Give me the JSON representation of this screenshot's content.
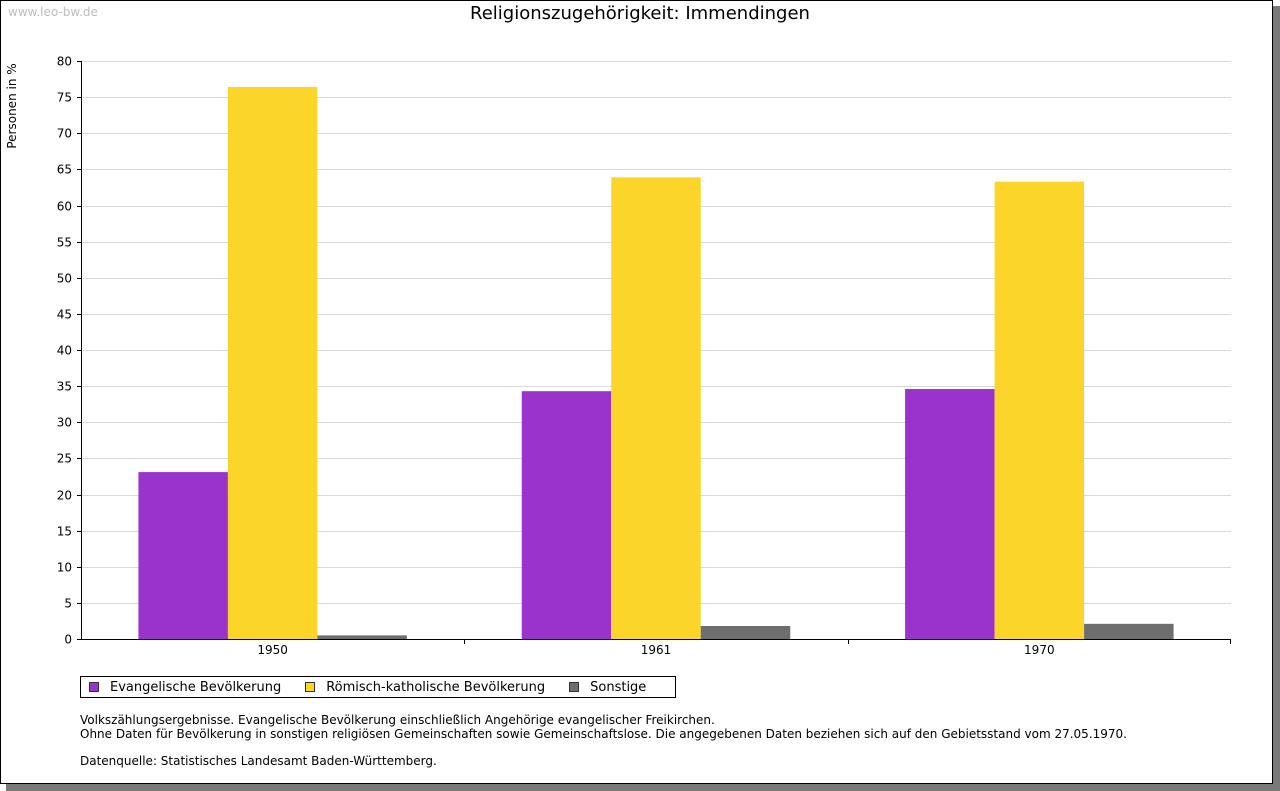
{
  "watermark": "www.leo-bw.de",
  "chart_data": {
    "type": "bar",
    "title": "Religionszugehörigkeit: Immendingen",
    "xlabel": "",
    "ylabel": "Personen in %",
    "ylim": [
      0,
      80
    ],
    "yticks": [
      "0",
      "5",
      "10",
      "15",
      "20",
      "25",
      "30",
      "35",
      "40",
      "45",
      "50",
      "55",
      "60",
      "65",
      "70",
      "75",
      "80"
    ],
    "categories": [
      "1950",
      "1961",
      "1970"
    ],
    "series": [
      {
        "name": "Evangelische Bevölkerung",
        "color": "#9933cc",
        "values": [
          23.1,
          34.3,
          34.6
        ]
      },
      {
        "name": "Römisch-katholische Bevölkerung",
        "color": "#fcd52b",
        "values": [
          76.4,
          63.9,
          63.3
        ]
      },
      {
        "name": "Sonstige",
        "color": "#6e6e6e",
        "values": [
          0.5,
          1.8,
          2.1
        ]
      }
    ],
    "grid": true,
    "legend_position": "bottom-left"
  },
  "notes": {
    "line1": "Volkszählungsergebnisse. Evangelische Bevölkerung einschließlich Angehörige evangelischer Freikirchen.",
    "line2": "Ohne Daten für Bevölkerung in sonstigen religiösen Gemeinschaften sowie Gemeinschaftslose. Die angegebenen Daten beziehen sich auf den Gebietsstand vom 27.05.1970.",
    "source": "Datenquelle: Statistisches Landesamt Baden-Württemberg."
  }
}
